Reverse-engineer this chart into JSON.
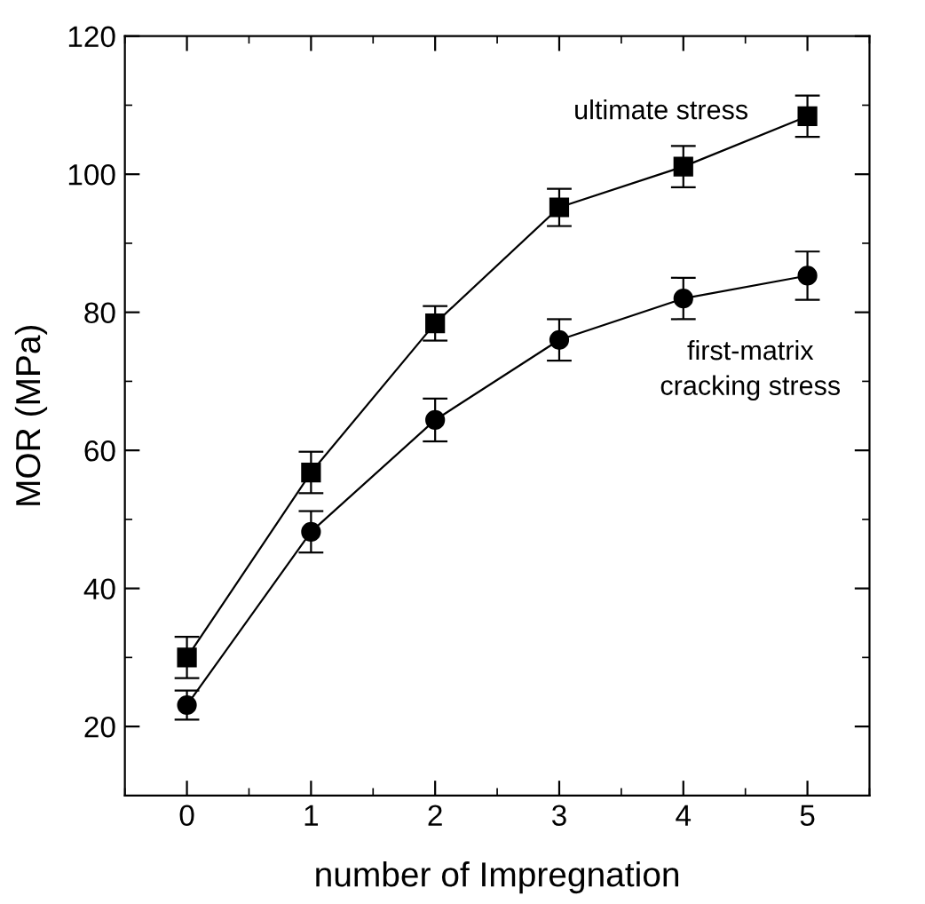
{
  "chart_data": {
    "type": "line",
    "xlabel": "number of Impregnation",
    "ylabel": "MOR (MPa)",
    "x": [
      0,
      1,
      2,
      3,
      4,
      5
    ],
    "series": [
      {
        "color": "#000000",
        "marker": "square",
        "values": [
          30.0,
          56.8,
          78.4,
          95.2,
          101.1,
          108.4
        ],
        "errors": [
          3,
          3,
          2.5,
          2.7,
          3,
          3
        ]
      },
      {
        "color": "#000000",
        "marker": "circle",
        "values": [
          23.1,
          48.2,
          64.4,
          76.0,
          82.0,
          85.3
        ],
        "errors": [
          2.1,
          3,
          3.1,
          3,
          3,
          3.5
        ]
      }
    ],
    "annotations": [
      "ultimate stress",
      "first-matrix\ncracking stress"
    ],
    "xlim": [
      -0.5,
      5.5
    ],
    "ylim": [
      10,
      120
    ],
    "xticks": [
      0,
      1,
      2,
      3,
      4,
      5
    ],
    "yticks": [
      20,
      40,
      60,
      80,
      100,
      120
    ],
    "grid": false,
    "legend": false,
    "line_style": "solid"
  }
}
